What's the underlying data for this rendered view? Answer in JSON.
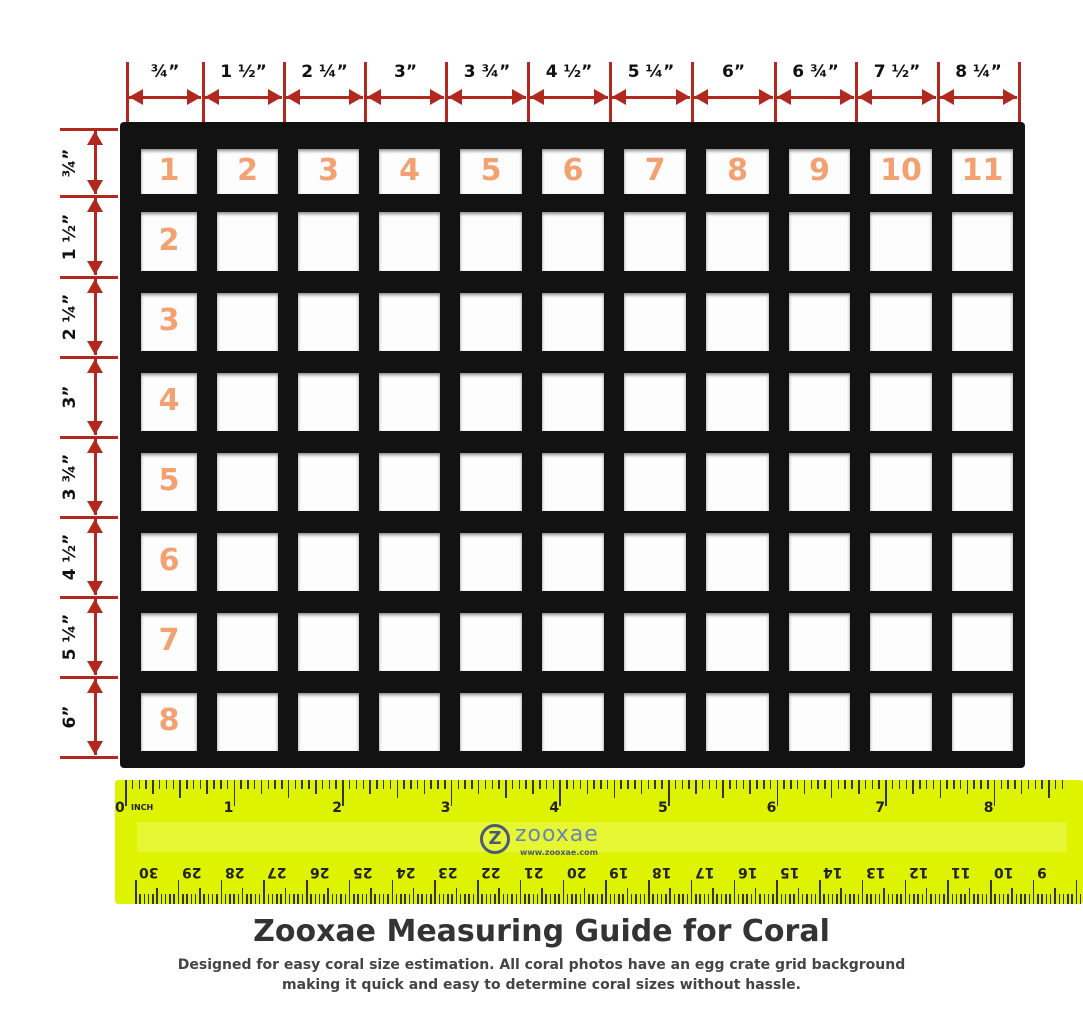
{
  "column_labels": [
    "¾”",
    "1 ½”",
    "2 ¼”",
    "3”",
    "3 ¾”",
    "4 ½”",
    "5 ¼”",
    "6”",
    "6 ¾”",
    "7 ½”",
    "8 ¼”"
  ],
  "row_labels": [
    "¾”",
    "1 ½”",
    "2 ¼”",
    "3”",
    "3 ¾”",
    "4 ½”",
    "5 ¼”",
    "6”"
  ],
  "column_numbers": [
    "1",
    "2",
    "3",
    "4",
    "5",
    "6",
    "7",
    "8",
    "9",
    "10",
    "11"
  ],
  "row_numbers": [
    "2",
    "3",
    "4",
    "5",
    "6",
    "7",
    "8"
  ],
  "ruler": {
    "inch_unit": "INCH",
    "inch_labels": [
      "0",
      "1",
      "2",
      "3",
      "4",
      "5",
      "6",
      "7",
      "8"
    ],
    "cm_labels": [
      "30",
      "29",
      "28",
      "27",
      "26",
      "25",
      "24",
      "23",
      "22",
      "21",
      "20",
      "19",
      "18",
      "17",
      "16",
      "15",
      "14",
      "13",
      "12",
      "11",
      "10",
      "9"
    ],
    "brand": "zooxae",
    "brand_url": "www.zooxae.com"
  },
  "title": "Zooxae Measuring Guide for Coral",
  "description": [
    "Designed for easy coral size estimation. All coral photos have an egg crate grid background",
    "making it quick and easy to determine coral sizes without hassle."
  ],
  "colors": {
    "arrow": "#b0281e",
    "number": "#f4a172",
    "ruler": "#def300",
    "grid": "#121212"
  }
}
